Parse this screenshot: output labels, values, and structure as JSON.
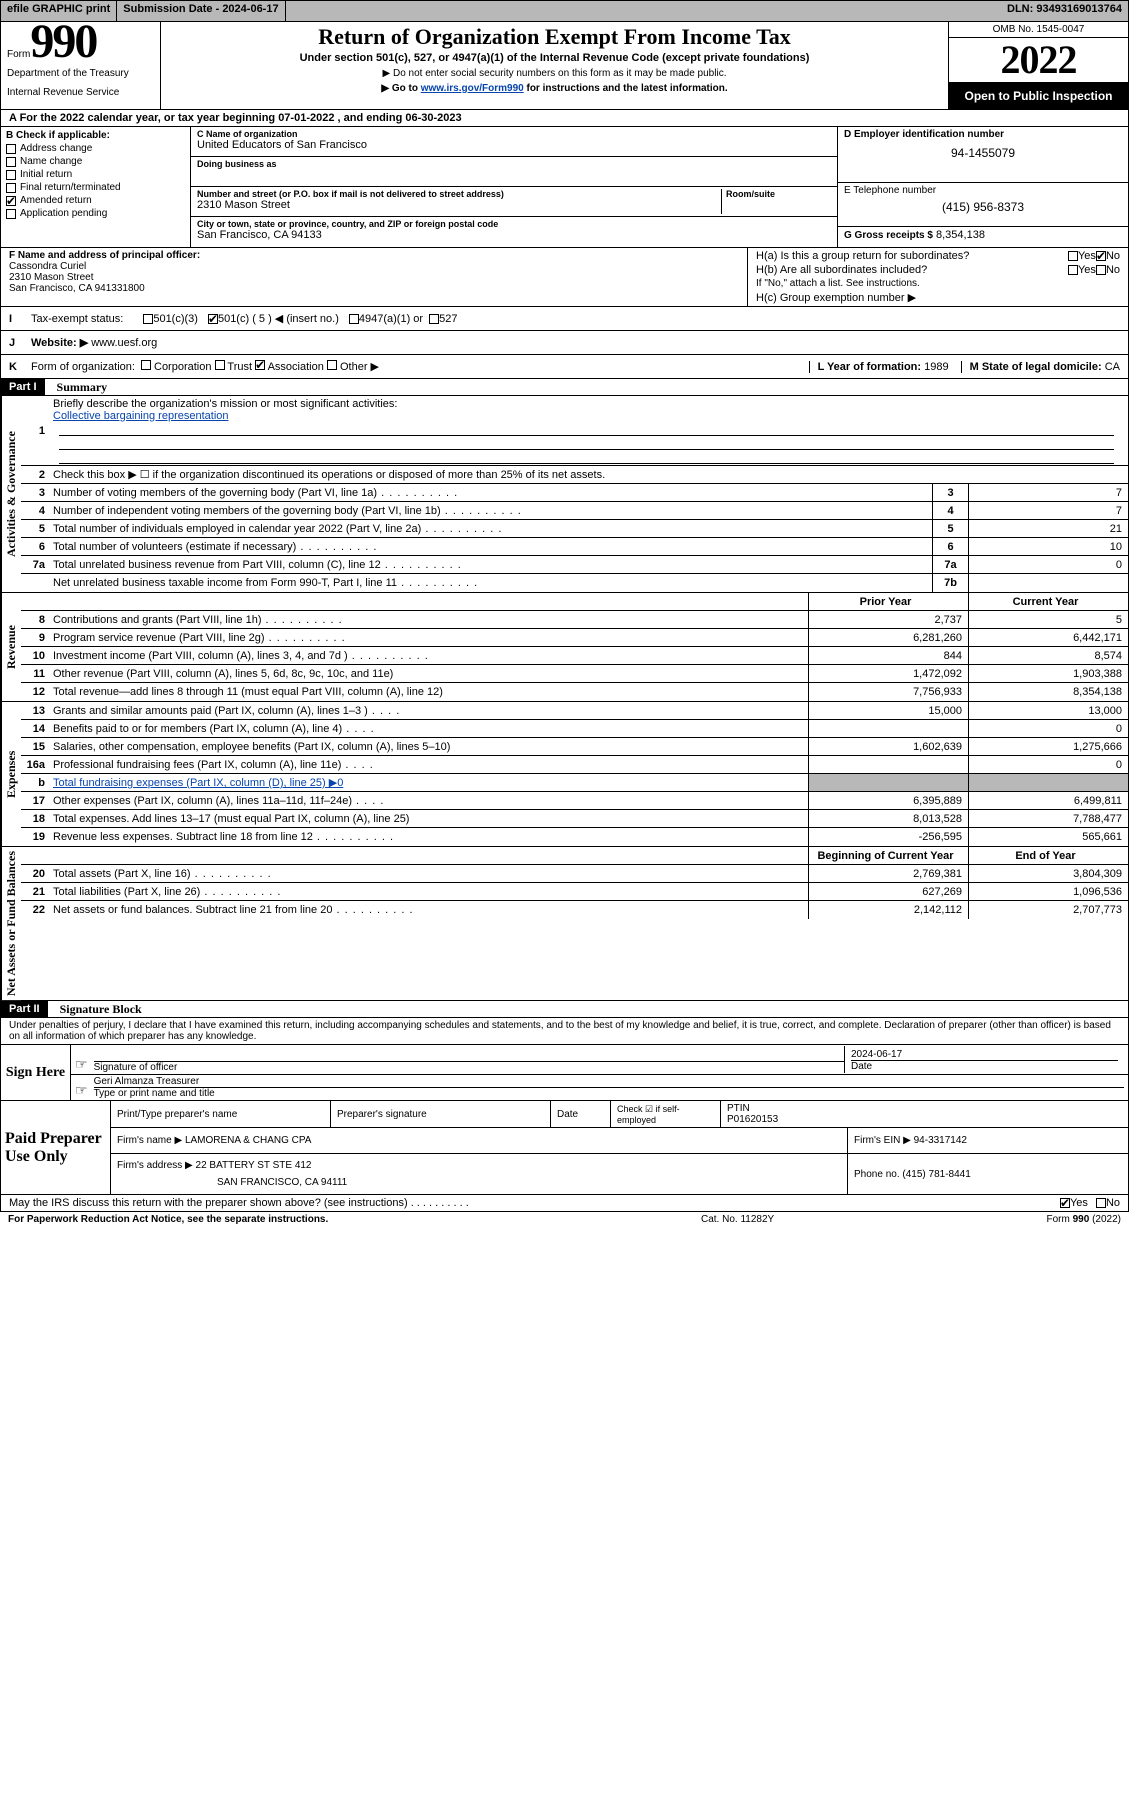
{
  "topbar": {
    "efile": "efile GRAPHIC print",
    "submission": "Submission Date - 2024-06-17",
    "dln": "DLN: 93493169013764"
  },
  "header": {
    "form_word": "Form",
    "form_num": "990",
    "dept": "Department of the Treasury",
    "irs": "Internal Revenue Service",
    "title": "Return of Organization Exempt From Income Tax",
    "sub": "Under section 501(c), 527, or 4947(a)(1) of the Internal Revenue Code (except private foundations)",
    "sub2": "▶ Do not enter social security numbers on this form as it may be made public.",
    "sub3_pre": "▶ Go to ",
    "sub3_link": "www.irs.gov/Form990",
    "sub3_post": " for instructions and the latest information.",
    "omb": "OMB No. 1545-0047",
    "year": "2022",
    "open_pub": "Open to Public Inspection"
  },
  "row_a": "A For the 2022 calendar year, or tax year beginning 07-01-2022   , and ending 06-30-2023",
  "col_b": {
    "head": "B Check if applicable:",
    "items": [
      "Address change",
      "Name change",
      "Initial return",
      "Final return/terminated",
      "Amended return",
      "Application pending"
    ],
    "checked_idx": 4
  },
  "col_c": {
    "c_lbl": "C Name of organization",
    "c_val": "United Educators of San Francisco",
    "dba_lbl": "Doing business as",
    "addr_lbl": "Number and street (or P.O. box if mail is not delivered to street address)",
    "room_lbl": "Room/suite",
    "addr_val": "2310 Mason Street",
    "city_lbl": "City or town, state or province, country, and ZIP or foreign postal code",
    "city_val": "San Francisco, CA  94133"
  },
  "col_de": {
    "d_lbl": "D Employer identification number",
    "d_val": "94-1455079",
    "e_lbl": "E Telephone number",
    "e_val": "(415) 956-8373",
    "g_lbl": "G Gross receipts $",
    "g_val": "8,354,138"
  },
  "f": {
    "lbl": "F  Name and address of principal officer:",
    "name": "Cassondra Curiel",
    "addr1": "2310 Mason Street",
    "addr2": "San Francisco, CA  941331800"
  },
  "h": {
    "ha": "H(a)  Is this a group return for subordinates?",
    "hb": "H(b)  Are all subordinates included?",
    "hb2": "If \"No,\" attach a list. See instructions.",
    "hc": "H(c)  Group exemption number ▶",
    "yes": "Yes",
    "no": "No"
  },
  "i": {
    "lead": "I",
    "lbl": "Tax-exempt status:",
    "o1": "501(c)(3)",
    "o2": "501(c) ( 5 ) ◀ (insert no.)",
    "o3": "4947(a)(1) or",
    "o4": "527"
  },
  "j": {
    "lead": "J",
    "lbl": "Website: ▶ ",
    "val": "www.uesf.org"
  },
  "k": {
    "lead": "K",
    "lbl": "Form of organization:",
    "o": [
      "Corporation",
      "Trust",
      "Association",
      "Other ▶"
    ],
    "checked_idx": 2,
    "l_lbl": "L Year of formation:",
    "l_val": "1989",
    "m_lbl": "M State of legal domicile:",
    "m_val": "CA"
  },
  "part1": {
    "num": "Part I",
    "title": "Summary"
  },
  "sect_labels": {
    "gov": "Activities & Governance",
    "rev": "Revenue",
    "exp": "Expenses",
    "net": "Net Assets or Fund Balances"
  },
  "lines_gov": [
    {
      "n": "1",
      "d": "Briefly describe the organization's mission or most significant activities:",
      "link": "Collective bargaining representation",
      "nobox": true
    },
    {
      "n": "2",
      "d": "Check this box ▶ ☐  if the organization discontinued its operations or disposed of more than 25% of its net assets.",
      "nobox": true
    },
    {
      "n": "3",
      "d": "Number of voting members of the governing body (Part VI, line 1a)",
      "box": "3",
      "v": "7",
      "dots": true
    },
    {
      "n": "4",
      "d": "Number of independent voting members of the governing body (Part VI, line 1b)",
      "box": "4",
      "v": "7",
      "dots": true
    },
    {
      "n": "5",
      "d": "Total number of individuals employed in calendar year 2022 (Part V, line 2a)",
      "box": "5",
      "v": "21",
      "dots": true
    },
    {
      "n": "6",
      "d": "Total number of volunteers (estimate if necessary)",
      "box": "6",
      "v": "10",
      "dots": true
    },
    {
      "n": "7a",
      "d": "Total unrelated business revenue from Part VIII, column (C), line 12",
      "box": "7a",
      "v": "0",
      "dots": true
    },
    {
      "n": "",
      "d": "Net unrelated business taxable income from Form 990-T, Part I, line 11",
      "box": "7b",
      "v": "",
      "dots": true
    }
  ],
  "col_hdrs": {
    "prior": "Prior Year",
    "curr": "Current Year",
    "beg": "Beginning of Current Year",
    "end": "End of Year"
  },
  "lines_rev": [
    {
      "n": "8",
      "d": "Contributions and grants (Part VIII, line 1h)",
      "p": "2,737",
      "c": "5",
      "dots": true
    },
    {
      "n": "9",
      "d": "Program service revenue (Part VIII, line 2g)",
      "p": "6,281,260",
      "c": "6,442,171",
      "dots": true
    },
    {
      "n": "10",
      "d": "Investment income (Part VIII, column (A), lines 3, 4, and 7d )",
      "p": "844",
      "c": "8,574",
      "dots": true
    },
    {
      "n": "11",
      "d": "Other revenue (Part VIII, column (A), lines 5, 6d, 8c, 9c, 10c, and 11e)",
      "p": "1,472,092",
      "c": "1,903,388"
    },
    {
      "n": "12",
      "d": "Total revenue—add lines 8 through 11 (must equal Part VIII, column (A), line 12)",
      "p": "7,756,933",
      "c": "8,354,138"
    }
  ],
  "lines_exp": [
    {
      "n": "13",
      "d": "Grants and similar amounts paid (Part IX, column (A), lines 1–3 )",
      "p": "15,000",
      "c": "13,000",
      "dots": "s"
    },
    {
      "n": "14",
      "d": "Benefits paid to or for members (Part IX, column (A), line 4)",
      "p": "",
      "c": "0",
      "dots": "s"
    },
    {
      "n": "15",
      "d": "Salaries, other compensation, employee benefits (Part IX, column (A), lines 5–10)",
      "p": "1,602,639",
      "c": "1,275,666"
    },
    {
      "n": "16a",
      "d": "Professional fundraising fees (Part IX, column (A), line 11e)",
      "p": "",
      "c": "0",
      "dots": "s"
    },
    {
      "n": "b",
      "d": "Total fundraising expenses (Part IX, column (D), line 25) ▶0",
      "shade": true,
      "link": true
    },
    {
      "n": "17",
      "d": "Other expenses (Part IX, column (A), lines 11a–11d, 11f–24e)",
      "p": "6,395,889",
      "c": "6,499,811",
      "dots": "s"
    },
    {
      "n": "18",
      "d": "Total expenses. Add lines 13–17 (must equal Part IX, column (A), line 25)",
      "p": "8,013,528",
      "c": "7,788,477"
    },
    {
      "n": "19",
      "d": "Revenue less expenses. Subtract line 18 from line 12",
      "p": "-256,595",
      "c": "565,661",
      "dots": true
    }
  ],
  "lines_net": [
    {
      "n": "20",
      "d": "Total assets (Part X, line 16)",
      "p": "2,769,381",
      "c": "3,804,309",
      "dots": true
    },
    {
      "n": "21",
      "d": "Total liabilities (Part X, line 26)",
      "p": "627,269",
      "c": "1,096,536",
      "dots": true
    },
    {
      "n": "22",
      "d": "Net assets or fund balances. Subtract line 21 from line 20",
      "p": "2,142,112",
      "c": "2,707,773",
      "dots": true
    }
  ],
  "part2": {
    "num": "Part II",
    "title": "Signature Block"
  },
  "penalty": "Under penalties of perjury, I declare that I have examined this return, including accompanying schedules and statements, and to the best of my knowledge and belief, it is true, correct, and complete. Declaration of preparer (other than officer) is based on all information of which preparer has any knowledge.",
  "sign": {
    "here": "Sign Here",
    "sig_lbl": "Signature of officer",
    "date_lbl": "Date",
    "date_val": "2024-06-17",
    "name": "Geri Almanza  Treasurer",
    "name_lbl": "Type or print name and title"
  },
  "prep": {
    "title": "Paid Preparer Use Only",
    "h1": "Print/Type preparer's name",
    "h2": "Preparer's signature",
    "h3": "Date",
    "h4": "Check ☑ if self-employed",
    "h5_lbl": "PTIN",
    "h5_val": "P01620153",
    "firm_lbl": "Firm's name    ▶",
    "firm_val": "LAMORENA & CHANG CPA",
    "ein_lbl": "Firm's EIN ▶",
    "ein_val": "94-3317142",
    "addr_lbl": "Firm's address ▶",
    "addr_val1": "22 BATTERY ST STE 412",
    "addr_val2": "SAN FRANCISCO, CA  94111",
    "phone_lbl": "Phone no.",
    "phone_val": "(415) 781-8441"
  },
  "footer": {
    "discuss": "May the IRS discuss this return with the preparer shown above? (see instructions)",
    "yes": "Yes",
    "no": "No",
    "pra": "For Paperwork Reduction Act Notice, see the separate instructions.",
    "cat": "Cat. No. 11282Y",
    "form": "Form 990 (2022)"
  }
}
